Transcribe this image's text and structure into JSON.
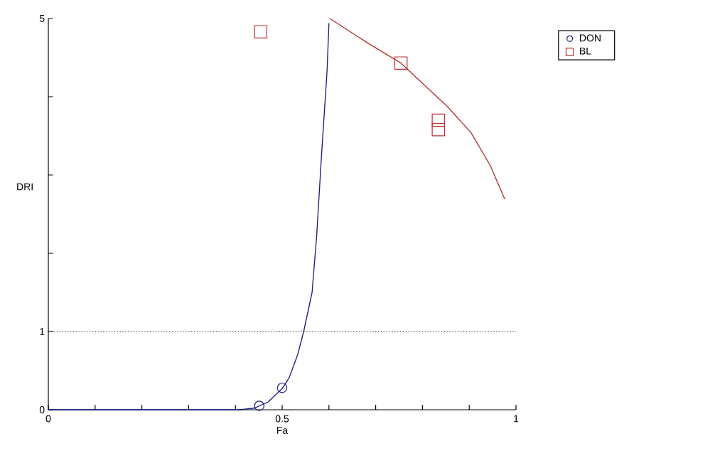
{
  "chart_data": {
    "type": "scatter",
    "xlabel": "Fa",
    "ylabel": "DRI",
    "xlim": [
      0,
      1
    ],
    "ylim": [
      0,
      5
    ],
    "xticks": [
      0,
      {
        "value": 0.1,
        "label": null
      },
      {
        "value": 0.2,
        "label": null
      },
      {
        "value": 0.3,
        "label": null
      },
      {
        "value": 0.4,
        "label": null
      },
      0.5,
      {
        "value": 0.6,
        "label": null
      },
      {
        "value": 0.7,
        "label": null
      },
      {
        "value": 0.8,
        "label": null
      },
      {
        "value": 0.9,
        "label": null
      },
      1
    ],
    "yticks": [
      0,
      1,
      {
        "value": 2,
        "label": null
      },
      {
        "value": 3,
        "label": null
      },
      {
        "value": 4,
        "label": null
      },
      5
    ],
    "series": [
      {
        "name": "DON",
        "marker": "circle",
        "color": "#1c1c80",
        "x": [
          0.451,
          0.5
        ],
        "values": [
          0.05,
          0.28
        ]
      },
      {
        "name": "BL",
        "marker": "square",
        "color": "#c03030",
        "x": [
          0.454,
          0.754,
          0.834,
          0.834
        ],
        "values": [
          4.83,
          4.43,
          3.7,
          3.58
        ]
      },
      {
        "type": "line",
        "marker": "none",
        "line_style": "solid",
        "color": "#1c1c80",
        "x": [
          0,
          0.41,
          0.44,
          0.47,
          0.5,
          0.515,
          0.533,
          0.546,
          0.564,
          0.574,
          0.584,
          0.596,
          0.6
        ],
        "values": [
          0,
          0,
          0.02,
          0.1,
          0.27,
          0.41,
          0.7,
          1,
          1.5,
          2.24,
          3.24,
          4.33,
          4.94
        ]
      },
      {
        "type": "line",
        "marker": "none",
        "line_style": "solid",
        "color": "#b03030",
        "x": [
          0.602,
          0.682,
          0.754,
          0.854,
          0.904,
          0.945,
          0.976
        ],
        "values": [
          5.0,
          4.69,
          4.43,
          3.87,
          3.54,
          3.12,
          2.69
        ]
      }
    ],
    "ref_lines": [
      {
        "axis": "y",
        "value": 1,
        "color": "#000000",
        "line_style": "dotted"
      }
    ],
    "grid": false,
    "legend": "top right"
  }
}
